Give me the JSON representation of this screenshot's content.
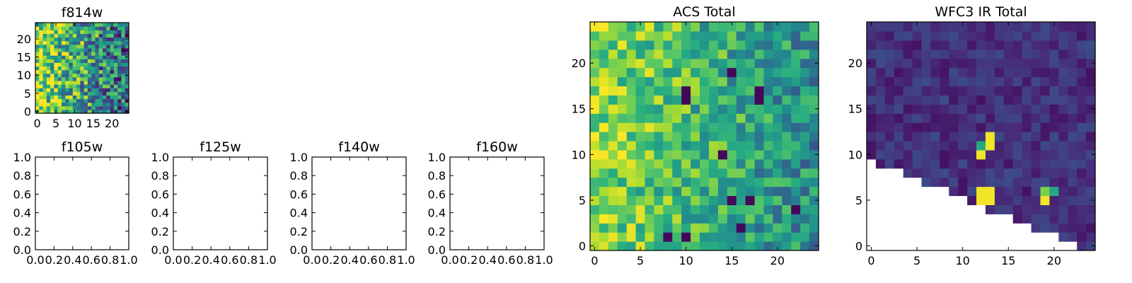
{
  "colormap": "viridis",
  "chart_data": [
    {
      "id": "f814w",
      "type": "heatmap",
      "title": "f814w",
      "grid_size": 25,
      "x_ticks": [
        "0",
        "5",
        "10",
        "15",
        "20"
      ],
      "y_ticks": [
        "0",
        "5",
        "10",
        "15",
        "20"
      ],
      "xlim": [
        -0.5,
        24.5
      ],
      "ylim": [
        -0.5,
        24.5
      ],
      "grid": false,
      "values_pattern": "random noise, high (yellow) toward left columns, decreasing toward right"
    },
    {
      "id": "f105w",
      "type": "empty",
      "title": "f105w",
      "x_ticks": [
        "0.0",
        "0.2",
        "0.4",
        "0.6",
        "0.8",
        "1.0"
      ],
      "y_ticks": [
        "0.0",
        "0.2",
        "0.4",
        "0.6",
        "0.8",
        "1.0"
      ],
      "xlim": [
        0,
        1
      ],
      "ylim": [
        0,
        1
      ]
    },
    {
      "id": "f125w",
      "type": "empty",
      "title": "f125w",
      "x_ticks": [
        "0.0",
        "0.2",
        "0.4",
        "0.6",
        "0.8",
        "1.0"
      ],
      "y_ticks": [
        "0.0",
        "0.2",
        "0.4",
        "0.6",
        "0.8",
        "1.0"
      ],
      "xlim": [
        0,
        1
      ],
      "ylim": [
        0,
        1
      ]
    },
    {
      "id": "f140w",
      "type": "empty",
      "title": "f140w",
      "x_ticks": [
        "0.0",
        "0.2",
        "0.4",
        "0.6",
        "0.8",
        "1.0"
      ],
      "y_ticks": [
        "0.0",
        "0.2",
        "0.4",
        "0.6",
        "0.8",
        "1.0"
      ],
      "xlim": [
        0,
        1
      ],
      "ylim": [
        0,
        1
      ]
    },
    {
      "id": "f160w",
      "type": "empty",
      "title": "f160w",
      "x_ticks": [
        "0.0",
        "0.2",
        "0.4",
        "0.6",
        "0.8",
        "1.0"
      ],
      "y_ticks": [
        "0.0",
        "0.2",
        "0.4",
        "0.6",
        "0.8",
        "1.0"
      ],
      "xlim": [
        0,
        1
      ],
      "ylim": [
        0,
        1
      ]
    },
    {
      "id": "acs-total",
      "type": "heatmap",
      "title": "ACS Total",
      "grid_size": 25,
      "x_ticks": [
        "0",
        "5",
        "10",
        "15",
        "20"
      ],
      "y_ticks": [
        "0",
        "5",
        "10",
        "15",
        "20"
      ],
      "xlim": [
        -0.5,
        24.5
      ],
      "ylim": [
        -0.5,
        24.5
      ],
      "grid": false,
      "dark_cells": [
        [
          10,
          17
        ],
        [
          10,
          16
        ],
        [
          18,
          17
        ],
        [
          18,
          16
        ],
        [
          15,
          5
        ],
        [
          17,
          5
        ],
        [
          16,
          2
        ],
        [
          10,
          1
        ],
        [
          14,
          10
        ],
        [
          22,
          4
        ],
        [
          8,
          1
        ],
        [
          15,
          19
        ]
      ],
      "values_pattern": "random noise, high (yellow) on the left, mostly green elsewhere"
    },
    {
      "id": "wfc3-ir-total",
      "type": "heatmap",
      "title": "WFC3 IR Total",
      "grid_size": 25,
      "x_ticks": [
        "0",
        "5",
        "10",
        "15",
        "20"
      ],
      "y_ticks": [
        "0",
        "5",
        "10",
        "15",
        "20"
      ],
      "xlim": [
        -0.5,
        24.5
      ],
      "ylim": [
        -0.5,
        24.5
      ],
      "grid": false,
      "masked_region": "lower-right triangle below the line from (0,9.5) to (24.5,-0.5) is blank",
      "bright_cells": [
        [
          13,
          12
        ],
        [
          13,
          11
        ],
        [
          12,
          11
        ],
        [
          12,
          10
        ],
        [
          12,
          6
        ],
        [
          13,
          6
        ],
        [
          12,
          5
        ],
        [
          13,
          5
        ],
        [
          19,
          6
        ],
        [
          20,
          6
        ],
        [
          19,
          5
        ],
        [
          12,
          4
        ]
      ],
      "values_pattern": "mostly dark blue/purple with a few bright yellow-green spots"
    }
  ]
}
